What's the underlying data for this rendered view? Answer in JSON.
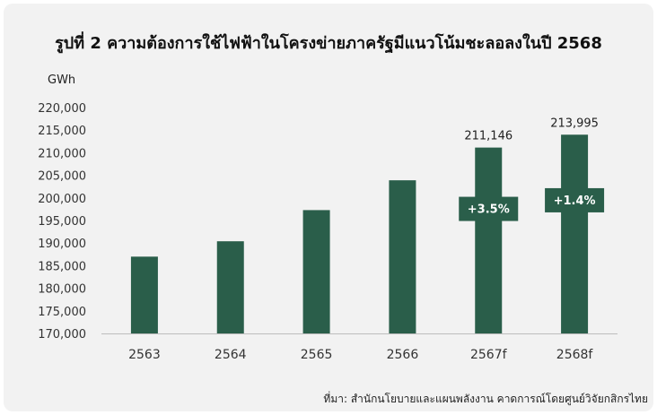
{
  "title": "รูปที่ 2 ความต้องการใช้ไฟฟ้าในโครงข่ายภาครัฐมีแนวโน้มชะลอลงในปี 2568",
  "unit_label": "GWh",
  "source": "ที่มา: สำนักนโยบายและแผนพลังงาน คาดการณ์โดยศูนย์วิจัยกสิกรไทย",
  "chart_data": {
    "type": "bar",
    "categories": [
      "2563",
      "2564",
      "2565",
      "2566",
      "2567f",
      "2568f"
    ],
    "values": [
      187000,
      190400,
      197300,
      203900,
      211146,
      213995
    ],
    "data_labels": [
      "",
      "",
      "",
      "",
      "211,146",
      "213,995"
    ],
    "growth_labels": [
      "",
      "",
      "",
      "",
      "+3.5%",
      "+1.4%"
    ],
    "ylim": [
      170000,
      220000
    ],
    "yticks": [
      "170,000",
      "175,000",
      "180,000",
      "185,000",
      "190,000",
      "195,000",
      "200,000",
      "205,000",
      "210,000",
      "215,000",
      "220,000"
    ],
    "ylabel": "GWh",
    "bar_color": "#2a5e4a",
    "grid": false
  }
}
